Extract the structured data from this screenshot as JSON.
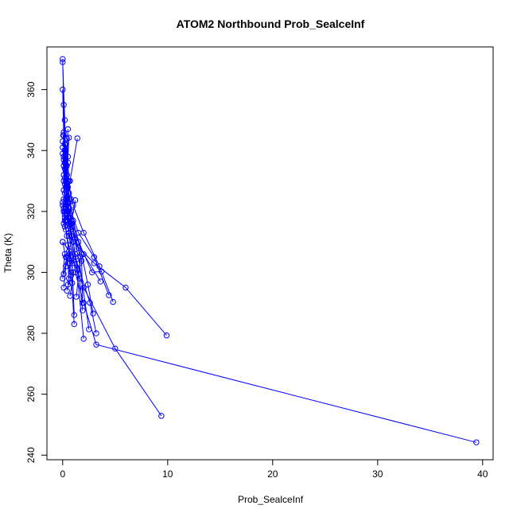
{
  "chart_data": {
    "type": "line",
    "title": "ATOM2 Northbound Prob_SealceInf",
    "xlabel": "Prob_SealceInf",
    "ylabel": "Theta (K)",
    "xlim": [
      -1.5,
      41
    ],
    "ylim": [
      238.5,
      374
    ],
    "xticks": [
      0,
      10,
      20,
      30,
      40
    ],
    "yticks": [
      240,
      260,
      280,
      300,
      320,
      340,
      360
    ],
    "grid": false,
    "legend": "none",
    "color": "#0000ff",
    "series": [
      {
        "points": [
          [
            0,
            370
          ],
          [
            0.1,
            355
          ],
          [
            0.2,
            342
          ],
          [
            0.3,
            330
          ],
          [
            0.5,
            318
          ],
          [
            0.8,
            312
          ],
          [
            1.2,
            300
          ],
          [
            2.0,
            290
          ],
          [
            3.2,
            276.3
          ],
          [
            39.4,
            244.2
          ]
        ]
      },
      {
        "points": [
          [
            0,
            369
          ],
          [
            0.2,
            350
          ],
          [
            0.3,
            335
          ],
          [
            0.4,
            322
          ],
          [
            0.6,
            312
          ],
          [
            1.0,
            304
          ],
          [
            2.0,
            295
          ],
          [
            5.0,
            275
          ],
          [
            9.4,
            252.9
          ]
        ]
      },
      {
        "points": [
          [
            0,
            360
          ],
          [
            0.1,
            345
          ],
          [
            0.3,
            334
          ],
          [
            0.4,
            325
          ],
          [
            0.6,
            316
          ],
          [
            1.0,
            310
          ],
          [
            3.0,
            303
          ],
          [
            6.0,
            295
          ],
          [
            9.9,
            279.3
          ]
        ]
      },
      {
        "points": [
          [
            0.05,
            345
          ],
          [
            0.2,
            336
          ],
          [
            0.4,
            328
          ],
          [
            0.8,
            320
          ],
          [
            1.5,
            313
          ],
          [
            3.0,
            305
          ],
          [
            4.4,
            292.5
          ]
        ]
      },
      {
        "points": [
          [
            0.1,
            346
          ],
          [
            0.3,
            340
          ],
          [
            0.5,
            330
          ],
          [
            1.0,
            322
          ],
          [
            2.0,
            313
          ],
          [
            3.5,
            302
          ],
          [
            4.8,
            290.3
          ]
        ]
      },
      {
        "points": [
          [
            0.5,
            347
          ],
          [
            0.4,
            335
          ],
          [
            0.3,
            324
          ],
          [
            0.7,
            316
          ],
          [
            1.5,
            310
          ],
          [
            2.8,
            300
          ],
          [
            3.7,
            300.3
          ]
        ]
      },
      {
        "points": [
          [
            0.6,
            344.2
          ],
          [
            0.4,
            332
          ],
          [
            0.5,
            323
          ],
          [
            0.9,
            316
          ],
          [
            2.0,
            306
          ],
          [
            3.6,
            297
          ]
        ]
      },
      {
        "points": [
          [
            1.4,
            344
          ],
          [
            0.7,
            330
          ],
          [
            0.4,
            320
          ],
          [
            0.6,
            313
          ],
          [
            1.2,
            305
          ],
          [
            2.6,
            290
          ],
          [
            3.2,
            280
          ]
        ]
      },
      {
        "points": [
          [
            0.3,
            340
          ],
          [
            0.5,
            328
          ],
          [
            1.0,
            317
          ],
          [
            1.8,
            306
          ],
          [
            2.4,
            296
          ],
          [
            2.9,
            286.5
          ]
        ]
      },
      {
        "points": [
          [
            0.2,
            334
          ],
          [
            0.4,
            324
          ],
          [
            0.9,
            315
          ],
          [
            1.6,
            303
          ],
          [
            2.5,
            281.3
          ]
        ]
      },
      {
        "points": [
          [
            0.1,
            330
          ],
          [
            0.3,
            321
          ],
          [
            0.8,
            314
          ],
          [
            1.2,
            306
          ],
          [
            2.0,
            278.2
          ]
        ]
      },
      {
        "points": [
          [
            0.2,
            326
          ],
          [
            0.5,
            318
          ],
          [
            1.0,
            310
          ],
          [
            1.6,
            298
          ],
          [
            1.9,
            287.5
          ]
        ]
      },
      {
        "points": [
          [
            0.1,
            324
          ],
          [
            0.6,
            318
          ],
          [
            1.2,
            311
          ],
          [
            1.8,
            303.8
          ],
          [
            1.9,
            290
          ]
        ]
      },
      {
        "points": [
          [
            1.2,
            323.7
          ],
          [
            0.8,
            316
          ],
          [
            1.5,
            308
          ],
          [
            1.7,
            305.2
          ],
          [
            1.3,
            292
          ]
        ]
      },
      {
        "points": [
          [
            0.1,
            320
          ],
          [
            0.4,
            312
          ],
          [
            0.9,
            303
          ],
          [
            1.1,
            286
          ]
        ]
      },
      {
        "points": [
          [
            0.2,
            317
          ],
          [
            0.5,
            309
          ],
          [
            0.8,
            300
          ],
          [
            1.1,
            283
          ]
        ]
      },
      {
        "points": [
          [
            0.0,
            310
          ],
          [
            0.6,
            307
          ],
          [
            1.0,
            300
          ],
          [
            0.9,
            296.5
          ],
          [
            0.7,
            292.3
          ]
        ]
      },
      {
        "points": [
          [
            0.0,
            310
          ],
          [
            0.3,
            305
          ],
          [
            0.8,
            299
          ],
          [
            0.4,
            294
          ]
        ]
      },
      {
        "points": [
          [
            0.1,
            299.5
          ],
          [
            0.4,
            305
          ],
          [
            0.7,
            303
          ],
          [
            0.5,
            296
          ]
        ]
      },
      {
        "points": [
          [
            0.0,
            298
          ],
          [
            0.2,
            306
          ],
          [
            0.5,
            303
          ],
          [
            0.6,
            298
          ]
        ]
      },
      {
        "points": [
          [
            0.1,
            295
          ],
          [
            0.3,
            302
          ],
          [
            0.6,
            306
          ],
          [
            1.4,
            301
          ]
        ]
      },
      {
        "points": [
          [
            0.0,
            341
          ],
          [
            0.1,
            338
          ],
          [
            0.2,
            336
          ],
          [
            0.1,
            332
          ],
          [
            0.3,
            328
          ]
        ]
      },
      {
        "points": [
          [
            0.0,
            343
          ],
          [
            0.2,
            340
          ],
          [
            0.1,
            337
          ],
          [
            0.3,
            333
          ],
          [
            0.2,
            329
          ]
        ]
      },
      {
        "points": [
          [
            0.0,
            339
          ],
          [
            0.1,
            335
          ],
          [
            0.2,
            331
          ],
          [
            0.1,
            327
          ],
          [
            0.3,
            323
          ],
          [
            0.2,
            320
          ]
        ]
      },
      {
        "points": [
          [
            0.0,
            323
          ],
          [
            0.1,
            321
          ],
          [
            0.2,
            319
          ],
          [
            0.3,
            317
          ],
          [
            0.2,
            315
          ]
        ]
      },
      {
        "points": [
          [
            0.0,
            322
          ],
          [
            0.1,
            320
          ],
          [
            0.2,
            318
          ],
          [
            0.1,
            316
          ],
          [
            0.3,
            314
          ]
        ]
      },
      {
        "points": [
          [
            0.4,
            344
          ],
          [
            0.5,
            338
          ],
          [
            0.4,
            332
          ],
          [
            0.6,
            326
          ],
          [
            0.5,
            320
          ]
        ]
      },
      {
        "points": [
          [
            0.3,
            342
          ],
          [
            0.5,
            336
          ],
          [
            0.6,
            330
          ],
          [
            0.8,
            324
          ],
          [
            0.7,
            318
          ]
        ]
      }
    ]
  }
}
